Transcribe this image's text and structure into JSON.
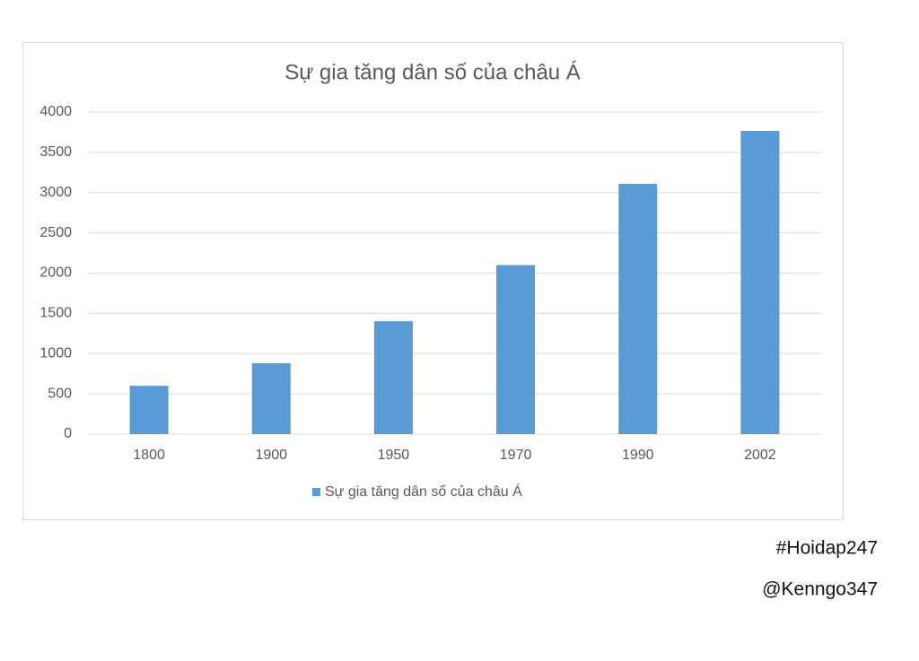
{
  "chart_data": {
    "type": "bar",
    "title": "Sự gia tăng dân số của châu Á",
    "categories": [
      "1800",
      "1900",
      "1950",
      "1970",
      "1990",
      "2002"
    ],
    "series": [
      {
        "name": "Sự gia tăng dân số của châu Á",
        "color": "#5b9bd5",
        "values": [
          600,
          880,
          1402,
          2100,
          3110,
          3766
        ]
      }
    ],
    "ylim": [
      0,
      4000
    ],
    "yticks": [
      0,
      500,
      1000,
      1500,
      2000,
      2500,
      3000,
      3500,
      4000
    ],
    "grid": true,
    "legend": "bottom",
    "annotations": [
      "#Hoidap247",
      "@Kenngo347"
    ]
  }
}
